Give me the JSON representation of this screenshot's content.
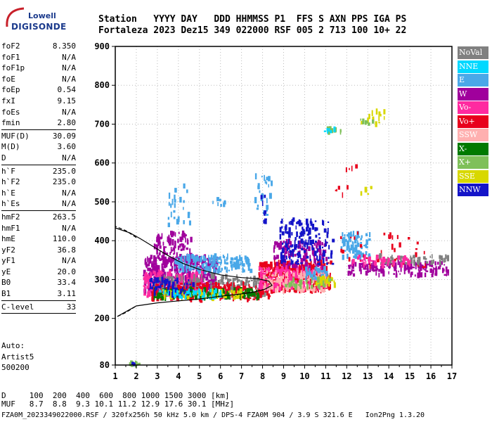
{
  "logo": {
    "line1": "Lowell",
    "line2": "DIGISONDE"
  },
  "header": {
    "row1": "Station   YYYY DAY   DDD HHMMSS P1  FFS S AXN PPS IGA PS",
    "row2": "Fortaleza 2023 Dez15 349 022000 RSF 005 2 713 100 10+ 22"
  },
  "params": [
    {
      "label": "foF2",
      "value": "8.350"
    },
    {
      "label": "foF1",
      "value": "N/A"
    },
    {
      "label": "foF1p",
      "value": "N/A"
    },
    {
      "label": "foE",
      "value": "N/A"
    },
    {
      "label": "foEp",
      "value": "0.54"
    },
    {
      "label": "fxI",
      "value": "9.15"
    },
    {
      "label": "foEs",
      "value": "N/A"
    },
    {
      "label": "fmin",
      "value": "2.80"
    },
    {
      "sep": true
    },
    {
      "label": "MUF(D)",
      "value": "30.09"
    },
    {
      "label": "M(D)",
      "value": "3.60"
    },
    {
      "label": "D",
      "value": "N/A"
    },
    {
      "sep": true
    },
    {
      "label": "h`F",
      "value": "235.0"
    },
    {
      "label": "h`F2",
      "value": "235.0"
    },
    {
      "label": "h`E",
      "value": "N/A"
    },
    {
      "label": "h`Es",
      "value": "N/A"
    },
    {
      "sep": true
    },
    {
      "label": "hmF2",
      "value": "263.5"
    },
    {
      "label": "hmF1",
      "value": "N/A"
    },
    {
      "label": "hmE",
      "value": "110.0"
    },
    {
      "label": "yF2",
      "value": "36.8"
    },
    {
      "label": "yF1",
      "value": "N/A"
    },
    {
      "label": "yE",
      "value": "20.0"
    },
    {
      "label": "B0",
      "value": "33.4"
    },
    {
      "label": "B1",
      "value": "3.11"
    },
    {
      "sep": true
    },
    {
      "label": "C-level",
      "value": "33"
    },
    {
      "sep": true
    }
  ],
  "auto": {
    "line1": "Auto:",
    "line2": "Artist5",
    "line3": "500200"
  },
  "legend": [
    {
      "label": "NoVal",
      "color": "#808080"
    },
    {
      "label": "NNE",
      "color": "#00d8ff"
    },
    {
      "label": "E",
      "color": "#4aa8e8"
    },
    {
      "label": "W",
      "color": "#a0009c"
    },
    {
      "label": "Vo-",
      "color": "#ff2aa0"
    },
    {
      "label": "Vo+",
      "color": "#e8001c"
    },
    {
      "label": "SSW",
      "color": "#ffb0b0"
    },
    {
      "label": "X-",
      "color": "#007a00"
    },
    {
      "label": "X+",
      "color": "#7fc05a"
    },
    {
      "label": "SSE",
      "color": "#d8d800"
    },
    {
      "label": "NNW",
      "color": "#1414c8"
    }
  ],
  "footer": {
    "line1": "D     100  200  400  600  800 1000 1500 3000 [km]",
    "line2": "MUF   8.7  8.8  9.3 10.1 11.2 12.9 17.6 30.1 [MHz]",
    "line3": "FZA0M_2023349022000.RSF / 320fx256h 50 kHz 5.0 km / DPS-4 FZA0M 904 / 3.9 S 321.6 E   Ion2Png 1.3.20"
  },
  "chart_data": {
    "type": "scatter",
    "xlabel": "",
    "ylabel": "",
    "xlim": [
      1,
      17
    ],
    "ylim": [
      80,
      900
    ],
    "xticks": [
      1,
      2,
      3,
      4,
      5,
      6,
      7,
      8,
      9,
      10,
      11,
      12,
      13,
      14,
      15,
      16,
      17
    ],
    "yticks": [
      80,
      200,
      300,
      400,
      500,
      600,
      700,
      800,
      900
    ],
    "grid": "dotted",
    "clusters": [
      {
        "series": "X+",
        "x": [
          1.6,
          2.1
        ],
        "y": [
          80,
          86
        ],
        "n": 10
      },
      {
        "series": "NNW",
        "x": [
          1.6,
          2.0
        ],
        "y": [
          81,
          85
        ],
        "n": 5
      },
      {
        "series": "W",
        "x": [
          2.3,
          5.8
        ],
        "y": [
          265,
          360
        ],
        "n": 450
      },
      {
        "series": "W",
        "x": [
          2.8,
          4.6
        ],
        "y": [
          350,
          420
        ],
        "n": 90
      },
      {
        "series": "Vo-",
        "x": [
          2.3,
          5.2
        ],
        "y": [
          255,
          320
        ],
        "n": 160
      },
      {
        "series": "E",
        "x": [
          3.8,
          7.4
        ],
        "y": [
          320,
          360
        ],
        "n": 170
      },
      {
        "series": "NoVal",
        "x": [
          2.8,
          8.2
        ],
        "y": [
          255,
          310
        ],
        "n": 220
      },
      {
        "series": "Vo+",
        "x": [
          2.6,
          8.6
        ],
        "y": [
          248,
          290
        ],
        "n": 200
      },
      {
        "series": "X-",
        "x": [
          2.8,
          7.8
        ],
        "y": [
          252,
          275
        ],
        "n": 150
      },
      {
        "series": "SSE",
        "x": [
          3.2,
          7.0
        ],
        "y": [
          252,
          270
        ],
        "n": 60
      },
      {
        "series": "NNW",
        "x": [
          2.6,
          4.8
        ],
        "y": [
          260,
          300
        ],
        "n": 60
      },
      {
        "series": "NNE",
        "x": [
          3.0,
          6.0
        ],
        "y": [
          252,
          272
        ],
        "n": 40
      },
      {
        "series": "Vo+",
        "x": [
          7.8,
          11.2
        ],
        "y": [
          270,
          345
        ],
        "n": 420
      },
      {
        "series": "Vo-",
        "x": [
          7.8,
          11.0
        ],
        "y": [
          275,
          330
        ],
        "n": 180
      },
      {
        "series": "SSW",
        "x": [
          8.0,
          11.0
        ],
        "y": [
          270,
          320
        ],
        "n": 120
      },
      {
        "series": "W",
        "x": [
          8.5,
          11.0
        ],
        "y": [
          330,
          400
        ],
        "n": 130
      },
      {
        "series": "NNW",
        "x": [
          8.8,
          11.3
        ],
        "y": [
          340,
          455
        ],
        "n": 150
      },
      {
        "series": "E",
        "x": [
          10.0,
          11.0
        ],
        "y": [
          300,
          330
        ],
        "n": 30
      },
      {
        "series": "SSE",
        "x": [
          10.5,
          11.4
        ],
        "y": [
          285,
          305
        ],
        "n": 40
      },
      {
        "series": "X+",
        "x": [
          9.0,
          11.2
        ],
        "y": [
          280,
          300
        ],
        "n": 30
      },
      {
        "series": "E",
        "x": [
          11.7,
          13.1
        ],
        "y": [
          355,
          420
        ],
        "n": 80
      },
      {
        "series": "W",
        "x": [
          12.0,
          16.8
        ],
        "y": [
          310,
          345
        ],
        "n": 160
      },
      {
        "series": "Vo+",
        "x": [
          11.6,
          15.8
        ],
        "y": [
          330,
          420
        ],
        "n": 40
      },
      {
        "series": "NoVal",
        "x": [
          13.5,
          16.8
        ],
        "y": [
          340,
          360
        ],
        "n": 60
      },
      {
        "series": "Vo-",
        "x": [
          12.2,
          15.0
        ],
        "y": [
          335,
          360
        ],
        "n": 40
      },
      {
        "series": "E",
        "x": [
          3.4,
          4.6
        ],
        "y": [
          440,
          550
        ],
        "n": 25
      },
      {
        "series": "E",
        "x": [
          7.6,
          8.4
        ],
        "y": [
          460,
          570
        ],
        "n": 25
      },
      {
        "series": "E",
        "x": [
          5.6,
          6.2
        ],
        "y": [
          490,
          510
        ],
        "n": 8
      },
      {
        "series": "NNW",
        "x": [
          7.9,
          8.1
        ],
        "y": [
          445,
          520
        ],
        "n": 10
      },
      {
        "series": "X+",
        "x": [
          10.9,
          11.8
        ],
        "y": [
          680,
          690
        ],
        "n": 8
      },
      {
        "series": "NNE",
        "x": [
          10.9,
          11.4
        ],
        "y": [
          680,
          688
        ],
        "n": 6
      },
      {
        "series": "SSE",
        "x": [
          12.4,
          13.8
        ],
        "y": [
          698,
          735
        ],
        "n": 14
      },
      {
        "series": "X+",
        "x": [
          12.5,
          13.2
        ],
        "y": [
          700,
          712
        ],
        "n": 6
      },
      {
        "series": "SSE",
        "x": [
          12.4,
          13.2
        ],
        "y": [
          520,
          540
        ],
        "n": 6
      },
      {
        "series": "Vo+",
        "x": [
          11.4,
          12.0
        ],
        "y": [
          515,
          540
        ],
        "n": 5
      },
      {
        "series": "Vo+",
        "x": [
          11.9,
          12.6
        ],
        "y": [
          580,
          600
        ],
        "n": 4
      }
    ],
    "boundary_curves": [
      {
        "style": "solid",
        "points": [
          [
            1.1,
            205
          ],
          [
            2.0,
            232
          ],
          [
            3.0,
            240
          ],
          [
            4.0,
            245
          ],
          [
            5.0,
            250
          ],
          [
            6.0,
            257
          ],
          [
            7.0,
            263
          ],
          [
            7.6,
            268
          ],
          [
            8.1,
            275
          ],
          [
            8.45,
            285
          ],
          [
            8.3,
            296
          ],
          [
            7.8,
            302
          ],
          [
            7.0,
            305
          ],
          [
            6.0,
            312
          ],
          [
            5.0,
            326
          ],
          [
            4.2,
            342
          ],
          [
            3.5,
            362
          ],
          [
            2.8,
            385
          ],
          [
            2.2,
            405
          ],
          [
            1.7,
            420
          ],
          [
            1.0,
            433
          ]
        ]
      },
      {
        "style": "dashed",
        "points": [
          [
            1.1,
            205
          ],
          [
            1.5,
            215
          ],
          [
            2.0,
            232
          ]
        ]
      },
      {
        "style": "dashed",
        "points": [
          [
            2.0,
            408
          ],
          [
            1.5,
            426
          ],
          [
            1.0,
            437
          ]
        ]
      }
    ]
  }
}
